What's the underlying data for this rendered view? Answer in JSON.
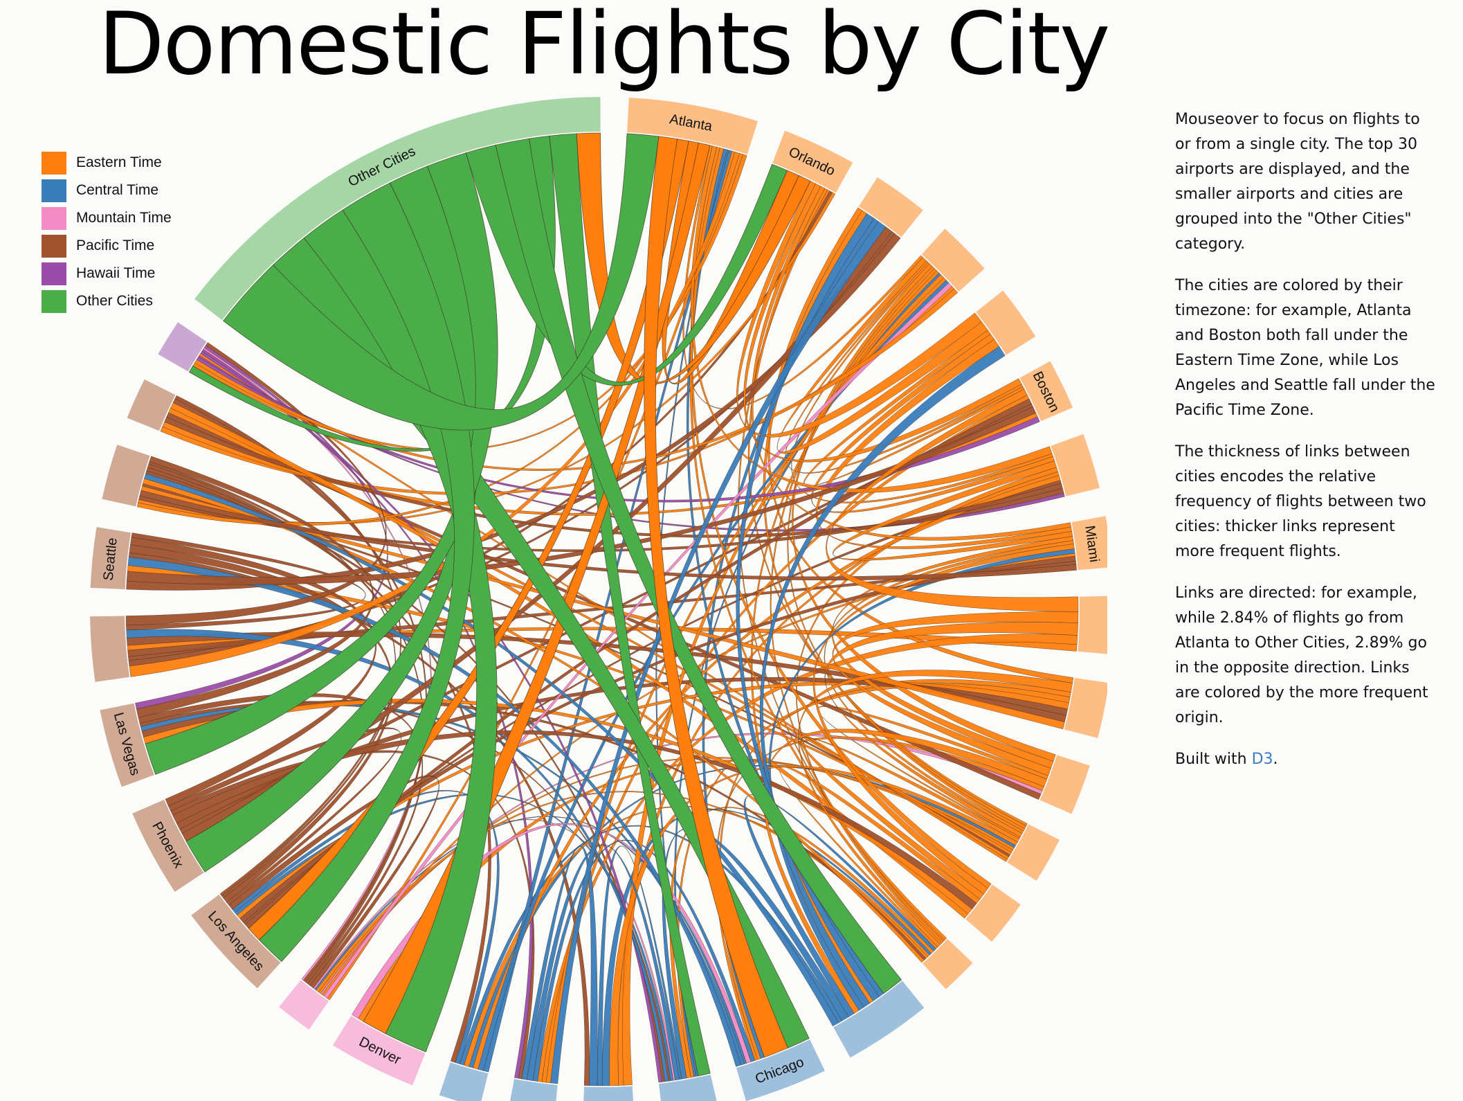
{
  "title": "Domestic Flights by City",
  "legend": [
    {
      "label": "Eastern Time",
      "color": "#ff7f0e"
    },
    {
      "label": "Central Time",
      "color": "#3a7dbb"
    },
    {
      "label": "Mountain Time",
      "color": "#f48bc4"
    },
    {
      "label": "Pacific Time",
      "color": "#a0522d"
    },
    {
      "label": "Hawaii Time",
      "color": "#9a4da8"
    },
    {
      "label": "Other Cities",
      "color": "#4aad4a"
    }
  ],
  "sidebar": {
    "p1": "Mouseover to focus on flights to or from a single city. The top 30 airports are displayed, and the smaller airports and cities are grouped into the \"Other Cities\" category.",
    "p2": "The cities are colored by their timezone: for example, Atlanta and Boston both fall under the Eastern Time Zone, while Los Angeles and Seattle fall under the Pacific Time Zone.",
    "p3": "The thickness of links between cities encodes the relative frequency of flights between two cities: thicker links represent more frequent flights.",
    "p4": "Links are directed: for example, while 2.84% of flights go from Atlanta to Other Cities, 2.89% go in the opposite direction. Links are colored by the more frequent origin.",
    "built_prefix": "Built with ",
    "built_link": "D3",
    "built_suffix": "."
  },
  "chart_data": {
    "type": "chord",
    "zone_colors": {
      "eastern": "#ff7f0e",
      "central": "#3a7dbb",
      "mountain": "#f48bc4",
      "pacific": "#a0522d",
      "hawaii": "#9a4da8",
      "other": "#4aad4a"
    },
    "zone_arc_colors": {
      "eastern": "#fdbe85",
      "central": "#9ec0dc",
      "mountain": "#f7bcdc",
      "pacific": "#d0aa94",
      "hawaii": "#cba7d3",
      "other": "#a6d6a6"
    },
    "cities": [
      {
        "label": "Atlanta",
        "zone": "eastern",
        "weight": 5.6
      },
      {
        "label": "Orlando",
        "zone": "eastern",
        "weight": 3.2
      },
      {
        "label": "",
        "zone": "eastern",
        "weight": 2.4
      },
      {
        "label": "",
        "zone": "eastern",
        "weight": 2.4
      },
      {
        "label": "",
        "zone": "eastern",
        "weight": 2.4
      },
      {
        "label": "Boston",
        "zone": "eastern",
        "weight": 2.2
      },
      {
        "label": "",
        "zone": "eastern",
        "weight": 2.4
      },
      {
        "label": "Miami",
        "zone": "eastern",
        "weight": 2.2
      },
      {
        "label": "",
        "zone": "eastern",
        "weight": 2.5
      },
      {
        "label": "",
        "zone": "eastern",
        "weight": 2.4
      },
      {
        "label": "",
        "zone": "eastern",
        "weight": 2.2
      },
      {
        "label": "",
        "zone": "eastern",
        "weight": 2.0
      },
      {
        "label": "",
        "zone": "eastern",
        "weight": 2.0
      },
      {
        "label": "",
        "zone": "eastern",
        "weight": 1.6
      },
      {
        "label": "",
        "zone": "central",
        "weight": 3.8
      },
      {
        "label": "Chicago",
        "zone": "central",
        "weight": 3.6
      },
      {
        "label": "",
        "zone": "central",
        "weight": 2.4
      },
      {
        "label": "",
        "zone": "central",
        "weight": 2.2
      },
      {
        "label": "",
        "zone": "central",
        "weight": 2.0
      },
      {
        "label": "",
        "zone": "central",
        "weight": 1.8
      },
      {
        "label": "Denver",
        "zone": "mountain",
        "weight": 3.8
      },
      {
        "label": "",
        "zone": "mountain",
        "weight": 1.6
      },
      {
        "label": "Los Angeles",
        "zone": "pacific",
        "weight": 4.2
      },
      {
        "label": "Phoenix",
        "zone": "pacific",
        "weight": 3.8
      },
      {
        "label": "Las Vegas",
        "zone": "pacific",
        "weight": 3.4
      },
      {
        "label": "",
        "zone": "pacific",
        "weight": 2.8
      },
      {
        "label": "Seattle",
        "zone": "pacific",
        "weight": 2.6
      },
      {
        "label": "",
        "zone": "pacific",
        "weight": 2.4
      },
      {
        "label": "",
        "zone": "pacific",
        "weight": 1.8
      },
      {
        "label": "",
        "zone": "hawaii",
        "weight": 1.6
      },
      {
        "label": "Other Cities",
        "zone": "other",
        "weight": 20.0
      }
    ],
    "annotations": [
      "2.84% Atlanta → Other Cities",
      "2.89% Other Cities → Atlanta"
    ]
  }
}
